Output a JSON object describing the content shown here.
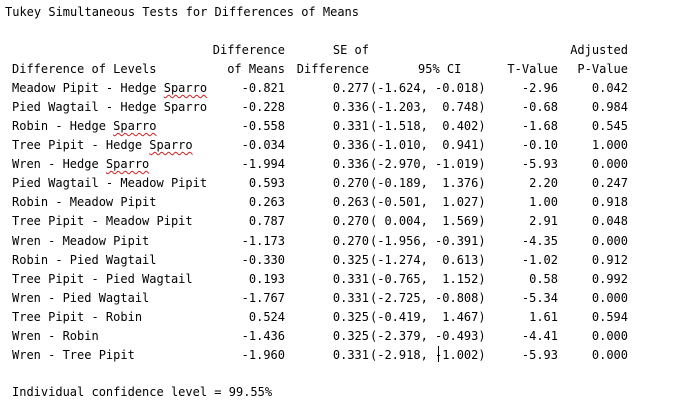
{
  "title": "Tukey Simultaneous Tests for Differences of Means",
  "headers": {
    "level_line2": "Difference of Levels",
    "diff_line1": "Difference",
    "diff_line2": "of Means",
    "se_line1": "SE of",
    "se_line2": "Difference",
    "ci_line2": "95% CI",
    "t_line2": "T-Value",
    "p_line1": "Adjusted",
    "p_line2": "P-Value"
  },
  "rows": [
    {
      "level_a": "Meadow Pipit - Hedge ",
      "level_b": "Sparro",
      "diff": "-0.821",
      "se": "0.277",
      "ci": "(-1.624, -0.018)",
      "t": "-2.96",
      "p": "0.042"
    },
    {
      "level_a": "Pied Wagtail - Hedge Sparro",
      "level_b": "",
      "diff": "-0.228",
      "se": "0.336",
      "ci": "(-1.203,  0.748)",
      "t": "-0.68",
      "p": "0.984"
    },
    {
      "level_a": "Robin - Hedge ",
      "level_b": "Sparro",
      "diff": "-0.558",
      "se": "0.331",
      "ci": "(-1.518,  0.402)",
      "t": "-1.68",
      "p": "0.545"
    },
    {
      "level_a": "Tree Pipit - Hedge ",
      "level_b": "Sparro",
      "diff": "-0.034",
      "se": "0.336",
      "ci": "(-1.010,  0.941)",
      "t": "-0.10",
      "p": "1.000"
    },
    {
      "level_a": "Wren - Hedge ",
      "level_b": "Sparro",
      "diff": "-1.994",
      "se": "0.336",
      "ci": "(-2.970, -1.019)",
      "t": "-5.93",
      "p": "0.000"
    },
    {
      "level_a": "Pied Wagtail - Meadow Pipit",
      "level_b": "",
      "diff": "0.593",
      "se": "0.270",
      "ci": "(-0.189,  1.376)",
      "t": "2.20",
      "p": "0.247"
    },
    {
      "level_a": "Robin - Meadow Pipit",
      "level_b": "",
      "diff": "0.263",
      "se": "0.263",
      "ci": "(-0.501,  1.027)",
      "t": "1.00",
      "p": "0.918"
    },
    {
      "level_a": "Tree Pipit - Meadow Pipit",
      "level_b": "",
      "diff": "0.787",
      "se": "0.270",
      "ci": "( 0.004,  1.569)",
      "t": "2.91",
      "p": "0.048"
    },
    {
      "level_a": "Wren - Meadow Pipit",
      "level_b": "",
      "diff": "-1.173",
      "se": "0.270",
      "ci": "(-1.956, -0.391)",
      "t": "-4.35",
      "p": "0.000"
    },
    {
      "level_a": "Robin - Pied Wagtail",
      "level_b": "",
      "diff": "-0.330",
      "se": "0.325",
      "ci": "(-1.274,  0.613)",
      "t": "-1.02",
      "p": "0.912"
    },
    {
      "level_a": "Tree Pipit - Pied Wagtail",
      "level_b": "",
      "diff": "0.193",
      "se": "0.331",
      "ci": "(-0.765,  1.152)",
      "t": "0.58",
      "p": "0.992"
    },
    {
      "level_a": "Wren - Pied Wagtail",
      "level_b": "",
      "diff": "-1.767",
      "se": "0.331",
      "ci": "(-2.725, -0.808)",
      "t": "-5.34",
      "p": "0.000"
    },
    {
      "level_a": "Tree Pipit - Robin",
      "level_b": "",
      "diff": "0.524",
      "se": "0.325",
      "ci": "(-0.419,  1.467)",
      "t": "1.61",
      "p": "0.594"
    },
    {
      "level_a": "Wren - Robin",
      "level_b": "",
      "diff": "-1.436",
      "se": "0.325",
      "ci": "(-2.379, -0.493)",
      "t": "-4.41",
      "p": "0.000"
    },
    {
      "level_a": "Wren - Tree Pipit",
      "level_b": "",
      "diff": "-1.960",
      "se": "0.331",
      "ci": "(-2.918, -1.002)",
      "t": "-5.93",
      "p": "0.000"
    }
  ],
  "footer": "Individual confidence level = 99.55%",
  "colors": {
    "text": "#000000",
    "background": "#ffffff",
    "spellcheck_underline": "#d02020"
  }
}
